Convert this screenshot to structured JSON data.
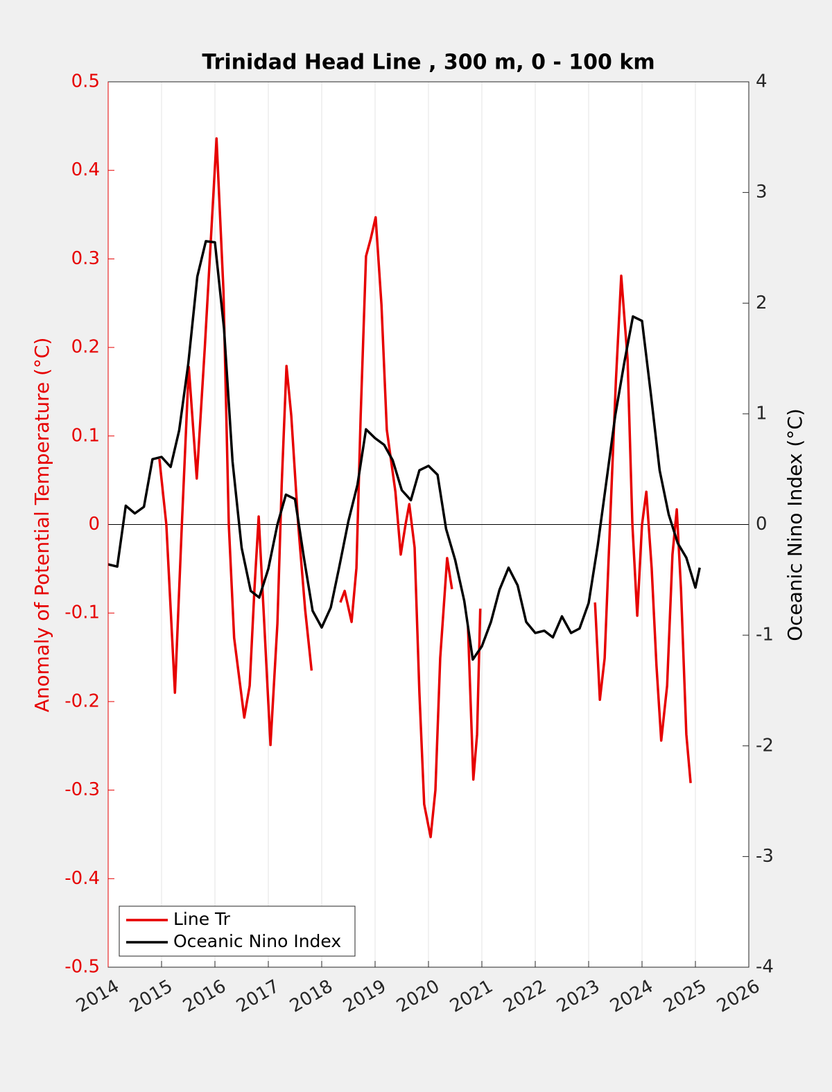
{
  "chart_data": {
    "type": "line",
    "title": "Trinidad Head Line , 300 m, 0 - 100 km",
    "ylabel": "Anomaly of Potential Temperature (°C)",
    "y2label": "Oceanic Nino Index (°C)",
    "xlim": [
      2014,
      2026
    ],
    "xticks": [
      2014,
      2015,
      2016,
      2017,
      2018,
      2019,
      2020,
      2021,
      2022,
      2023,
      2024,
      2025,
      2026
    ],
    "ylim": [
      -0.5,
      0.5
    ],
    "yticks": [
      -0.5,
      -0.4,
      -0.3,
      -0.2,
      -0.1,
      0,
      0.1,
      0.2,
      0.3,
      0.4,
      0.5
    ],
    "y2lim": [
      -4,
      4
    ],
    "y2ticks": [
      -4,
      -3,
      -2,
      -1,
      0,
      1,
      2,
      3,
      4
    ],
    "ylabel_color": "#e60000",
    "xgrid": true,
    "reference_line": {
      "y": 0
    },
    "legend": "lower left",
    "series": [
      {
        "name": "Line Tr",
        "color": "#e60000",
        "x": [
          2014.96,
          2015.09,
          2015.25,
          2015.38,
          2015.51,
          2015.66,
          2015.81,
          2016.03,
          2016.16,
          2016.26,
          2016.36,
          2016.55,
          2016.65,
          2016.74,
          2016.82,
          2016.91,
          2017.04,
          2017.17,
          2017.25,
          2017.34,
          2017.43,
          2017.56,
          2017.69,
          2017.81,
          2018.1,
          2018.35,
          2018.43,
          2018.56,
          2018.65,
          2018.73,
          2018.83,
          2018.92,
          2019.01,
          2019.12,
          2019.22,
          2019.38,
          2019.48,
          2019.57,
          2019.64,
          2019.74,
          2019.83,
          2019.92,
          2020.04,
          2020.13,
          2020.22,
          2020.35,
          2020.44,
          2020.6,
          2020.74,
          2020.84,
          2020.91,
          2020.97,
          2022.0,
          2023.12,
          2023.21,
          2023.3,
          2023.4,
          2023.51,
          2023.61,
          2023.73,
          2023.82,
          2023.91,
          2024.0,
          2024.08,
          2024.18,
          2024.27,
          2024.36,
          2024.47,
          2024.57,
          2024.65,
          2024.73,
          2024.83,
          2024.91
        ],
        "values": [
          0.074,
          0,
          -0.19,
          0,
          0.178,
          0.052,
          0.2,
          0.436,
          0.264,
          0,
          -0.128,
          -0.218,
          -0.182,
          -0.073,
          0.009,
          -0.096,
          -0.249,
          -0.112,
          0.045,
          0.179,
          0.123,
          0,
          -0.096,
          -0.165,
          null,
          -0.088,
          -0.075,
          -0.11,
          -0.049,
          0.123,
          0.303,
          0.323,
          0.347,
          0.248,
          0.107,
          0.037,
          -0.034,
          0,
          0.023,
          -0.026,
          -0.19,
          -0.316,
          -0.353,
          -0.3,
          -0.151,
          -0.038,
          -0.073,
          null,
          -0.116,
          -0.288,
          -0.237,
          -0.095,
          null,
          -0.088,
          -0.198,
          -0.151,
          0,
          0.162,
          0.281,
          0.186,
          0,
          -0.103,
          0,
          0.037,
          -0.049,
          -0.159,
          -0.244,
          -0.182,
          -0.034,
          0.017,
          -0.073,
          -0.237,
          -0.292
        ]
      },
      {
        "name": "Oceanic Nino Index",
        "color": "#000000",
        "axis": "y2",
        "x": [
          2014.0,
          2014.17,
          2014.33,
          2014.5,
          2014.67,
          2014.83,
          2015.0,
          2015.17,
          2015.33,
          2015.5,
          2015.67,
          2015.83,
          2016.0,
          2016.17,
          2016.33,
          2016.5,
          2016.67,
          2016.83,
          2017.0,
          2017.17,
          2017.33,
          2017.5,
          2017.67,
          2017.83,
          2018.0,
          2018.17,
          2018.33,
          2018.5,
          2018.67,
          2018.83,
          2019.0,
          2019.17,
          2019.33,
          2019.5,
          2019.67,
          2019.83,
          2020.0,
          2020.17,
          2020.33,
          2020.5,
          2020.67,
          2020.83,
          2021.0,
          2021.17,
          2021.33,
          2021.5,
          2021.67,
          2021.83,
          2022.0,
          2022.17,
          2022.33,
          2022.5,
          2022.67,
          2022.83,
          2023.0,
          2023.17,
          2023.33,
          2023.5,
          2023.67,
          2023.83,
          2024.0,
          2024.17,
          2024.33,
          2024.5,
          2024.67,
          2024.83,
          2025.0,
          2025.08
        ],
        "values": [
          -0.36,
          -0.38,
          0.17,
          0.1,
          0.16,
          0.59,
          0.61,
          0.52,
          0.85,
          1.45,
          2.24,
          2.56,
          2.55,
          1.77,
          0.57,
          -0.21,
          -0.6,
          -0.66,
          -0.4,
          0.0,
          0.27,
          0.23,
          -0.31,
          -0.78,
          -0.93,
          -0.75,
          -0.38,
          0.03,
          0.36,
          0.86,
          0.78,
          0.72,
          0.58,
          0.31,
          0.22,
          0.49,
          0.53,
          0.45,
          -0.04,
          -0.32,
          -0.69,
          -1.22,
          -1.1,
          -0.88,
          -0.59,
          -0.39,
          -0.55,
          -0.88,
          -0.98,
          -0.96,
          -1.02,
          -0.83,
          -0.98,
          -0.94,
          -0.71,
          -0.19,
          0.38,
          0.99,
          1.47,
          1.88,
          1.84,
          1.16,
          0.49,
          0.09,
          -0.17,
          -0.3,
          -0.57,
          -0.39
        ]
      }
    ]
  }
}
